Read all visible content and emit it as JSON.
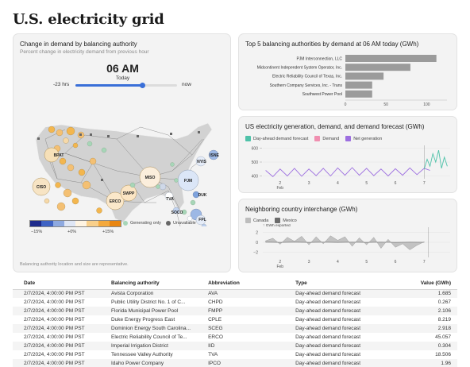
{
  "page": {
    "title": "U.S. electricity grid"
  },
  "map_card": {
    "title": "Change in demand by balancing authority",
    "subtitle": "Percent change in electricity demand from previous hour",
    "time": "06 AM",
    "day": "Today",
    "slider_left": "-23 hrs",
    "slider_right": "now",
    "slider_value": 0.66,
    "legend_ticks": [
      "−15%",
      "+0%",
      "+15%"
    ],
    "legend_generating": "Generating only",
    "legend_unavailable": "Unavailable",
    "footnote": "Balancing authority location and size are representative.",
    "labels": [
      "BPAT",
      "CISO",
      "MISO",
      "PJM",
      "ISNE",
      "NYIS",
      "SWPP",
      "ERCO",
      "DUK",
      "TVA",
      "SOCO",
      "FPL"
    ]
  },
  "bar_card": {
    "title": "Top 5 balancing authorities by demand at 06 AM today (GWh)",
    "chart_data": {
      "type": "bar",
      "orientation": "horizontal",
      "categories": [
        "PJM Interconnection, LLC",
        "Midcontinent Independent System Operator, Inc.",
        "Electric Reliability Council of Texas, Inc.",
        "Southern Company Services, Inc. - Trans",
        "Southwest Power Pool"
      ],
      "values": [
        112,
        80,
        47,
        33,
        33
      ],
      "xticks": [
        "0",
        "50",
        "100"
      ],
      "xlim": [
        0,
        125
      ],
      "colors": {
        "bar": "#9b9b9b"
      }
    }
  },
  "line_card": {
    "title": "US electricity generation, demand, and demand forecast (GWh)",
    "legend": [
      {
        "label": "Day-ahead demand forecast",
        "color": "#4fc2a9"
      },
      {
        "label": "Demand",
        "color": "#f08fb0"
      },
      {
        "label": "Net generation",
        "color": "#9d6fe0"
      }
    ],
    "chart_data": {
      "type": "line",
      "yticks": [
        "600",
        "500",
        "400"
      ],
      "xticks": [
        "2",
        "3",
        "4",
        "5",
        "6",
        "7"
      ],
      "xsub": "Feb",
      "ylim": [
        380,
        620
      ],
      "xlim": [
        1.4,
        7.9
      ],
      "series": [
        {
          "name": "Net generation",
          "color": "#9d6fe0",
          "x": [
            1.5,
            1.75,
            2.0,
            2.25,
            2.5,
            2.75,
            3.0,
            3.25,
            3.5,
            3.75,
            4.0,
            4.25,
            4.5,
            4.75,
            5.0,
            5.25,
            5.5,
            5.75,
            6.0,
            6.25,
            6.5,
            6.75,
            7.0,
            7.2
          ],
          "y": [
            440,
            395,
            450,
            400,
            455,
            398,
            450,
            402,
            455,
            400,
            458,
            405,
            460,
            405,
            455,
            402,
            450,
            400,
            452,
            405,
            458,
            410,
            455,
            440
          ]
        },
        {
          "name": "Day-ahead demand forecast",
          "color": "#4fc2a9",
          "x": [
            7.0,
            7.1,
            7.2,
            7.3,
            7.4,
            7.5,
            7.6,
            7.7,
            7.8
          ],
          "y": [
            450,
            520,
            470,
            560,
            500,
            585,
            455,
            535,
            470
          ]
        }
      ]
    }
  },
  "interchange_card": {
    "title": "Neighboring country interchange (GWh)",
    "legend": [
      {
        "label": "Canada",
        "color": "#bdbdbd"
      },
      {
        "label": "Mexico",
        "color": "#6b6b6b"
      }
    ],
    "note": "↑ GWh exported",
    "chart_data": {
      "type": "area",
      "yticks": [
        "2",
        "0",
        "−2"
      ],
      "xticks": [
        "2",
        "3",
        "4",
        "5",
        "6",
        "7"
      ],
      "xsub": "Feb",
      "ylim": [
        -3,
        3
      ],
      "xlim": [
        1.4,
        7.9
      ],
      "series": [
        {
          "name": "Canada",
          "color": "#bdbdbd",
          "x": [
            1.5,
            1.75,
            2.0,
            2.25,
            2.5,
            2.75,
            3.0,
            3.25,
            3.5,
            3.75,
            4.0,
            4.25,
            4.5,
            4.75,
            5.0,
            5.25,
            5.5,
            5.75,
            6.0,
            6.25,
            6.5,
            6.75,
            7.0
          ],
          "y": [
            0.3,
            0.8,
            -0.4,
            1.0,
            0.2,
            1.2,
            -0.5,
            1.1,
            -0.3,
            1.3,
            0.4,
            1.1,
            -0.8,
            0.9,
            -0.5,
            1.0,
            -1.2,
            0.6,
            -1.0,
            -0.3,
            -1.5,
            -0.6,
            0.1
          ]
        },
        {
          "name": "Mexico",
          "color": "#6b6b6b",
          "x": [
            1.5,
            2.0,
            2.5,
            3.0,
            3.5,
            4.0,
            4.5,
            5.0,
            5.5,
            6.0,
            6.5,
            7.0
          ],
          "y": [
            0.05,
            -0.05,
            0.05,
            -0.05,
            0.05,
            -0.05,
            0.05,
            -0.05,
            0.05,
            -0.05,
            0.05,
            0.0
          ]
        }
      ]
    }
  },
  "table": {
    "headers": [
      "Date",
      "Balancing authority",
      "Abbreviation",
      "Type",
      "Value (GWh)"
    ],
    "rows": [
      [
        "2/7/2024, 4:00:00 PM PST",
        "Avista Corporation",
        "AVA",
        "Day-ahead demand forecast",
        "1.685"
      ],
      [
        "2/7/2024, 4:00:00 PM PST",
        "Public Utility District No. 1 of C...",
        "CHPD",
        "Day-ahead demand forecast",
        "0.267"
      ],
      [
        "2/7/2024, 4:00:00 PM PST",
        "Florida Municipal Power Pool",
        "FMPP",
        "Day-ahead demand forecast",
        "2.106"
      ],
      [
        "2/7/2024, 4:00:00 PM PST",
        "Duke Energy Progress East",
        "CPLE",
        "Day-ahead demand forecast",
        "8.219"
      ],
      [
        "2/7/2024, 4:00:00 PM PST",
        "Dominion Energy South Carolina...",
        "SCEG",
        "Day-ahead demand forecast",
        "2.918"
      ],
      [
        "2/7/2024, 4:00:00 PM PST",
        "Electric Reliability Council of Te...",
        "ERCO",
        "Day-ahead demand forecast",
        "45.057"
      ],
      [
        "2/7/2024, 4:00:00 PM PST",
        "Imperial Irrigation District",
        "IID",
        "Day-ahead demand forecast",
        "0.304"
      ],
      [
        "2/7/2024, 4:00:00 PM PST",
        "Tennessee Valley Authority",
        "TVA",
        "Day-ahead demand forecast",
        "18.506"
      ],
      [
        "2/7/2024, 4:00:00 PM PST",
        "Idaho Power Company",
        "IPCO",
        "Day-ahead demand forecast",
        "1.96"
      ]
    ]
  }
}
